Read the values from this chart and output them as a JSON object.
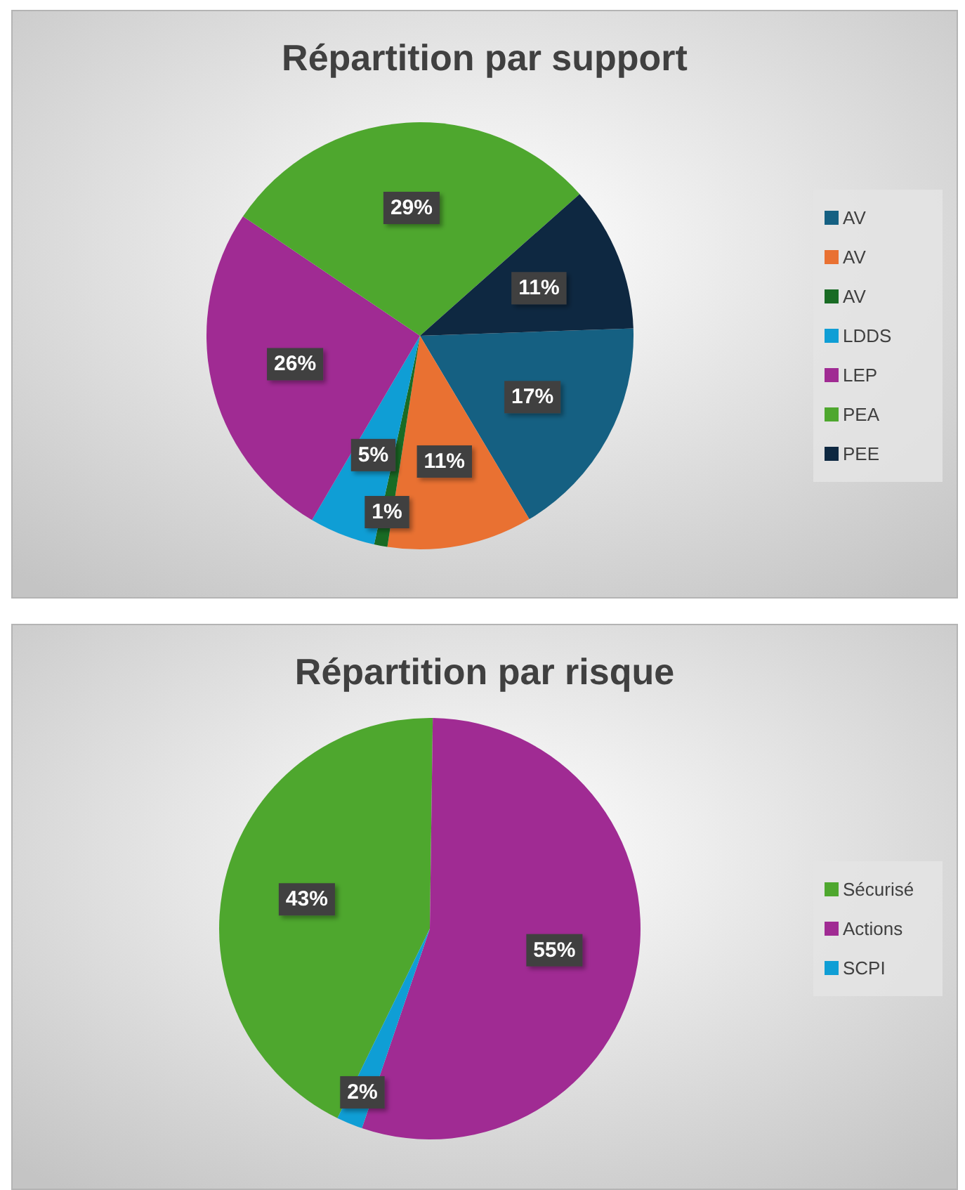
{
  "chart_data": [
    {
      "type": "pie",
      "title": "Répartition par support",
      "categories": [
        "AV",
        "AV",
        "AV",
        "LDDS",
        "LEP",
        "PEA",
        "PEE"
      ],
      "values": [
        17,
        11,
        1,
        5,
        26,
        29,
        11
      ],
      "colors": [
        "#156082",
        "#e97132",
        "#196b24",
        "#0f9ed5",
        "#a02b93",
        "#4ea72e",
        "#0e2841"
      ],
      "value_labels": [
        "17%",
        "11%",
        "1%",
        "5%",
        "26%",
        "29%",
        "11%"
      ],
      "legend": "right"
    },
    {
      "type": "pie",
      "title": "Répartition par risque",
      "categories": [
        "Sécurisé",
        "Actions",
        "SCPI"
      ],
      "values": [
        43,
        55,
        2
      ],
      "colors": [
        "#4ea72e",
        "#a02b93",
        "#0f9ed5"
      ],
      "value_labels": [
        "43%",
        "55%",
        "2%"
      ],
      "legend": "right"
    }
  ]
}
